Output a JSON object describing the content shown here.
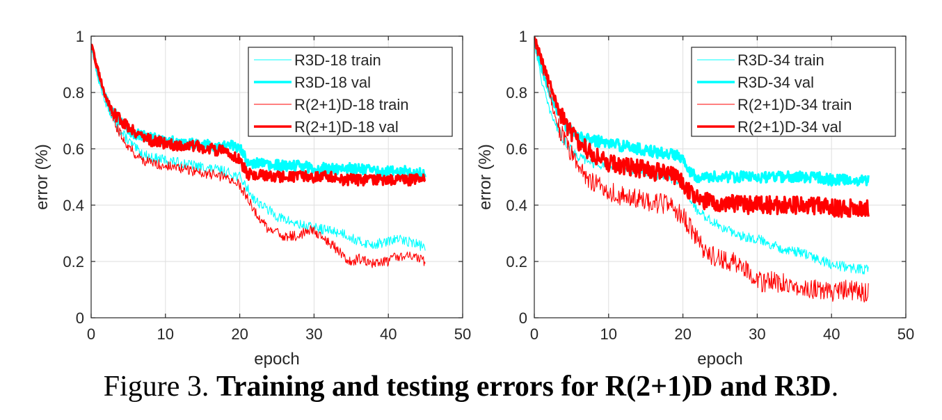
{
  "colors": {
    "cyan": "#00ffff",
    "red": "#ff0000",
    "axis": "#262626",
    "grid": "#dedede"
  },
  "caption": {
    "prefix": "Figure 3.",
    "bold": "Training and testing errors for R(2+1)D and R3D",
    "suffix": "."
  },
  "chart_data": [
    {
      "type": "line",
      "xlabel": "epoch",
      "ylabel": "error (%)",
      "xlim": [
        0,
        50
      ],
      "ylim": [
        0,
        1
      ],
      "xticks": [
        "0",
        "10",
        "20",
        "30",
        "40",
        "50"
      ],
      "yticks": [
        "0",
        "0.2",
        "0.4",
        "0.6",
        "0.8",
        "1"
      ],
      "grid": true,
      "legend_position": "top-right",
      "series": [
        {
          "name": "R3D-18 train",
          "color": "#00ffff",
          "weight": "thin",
          "points": [
            [
              0,
              0.97
            ],
            [
              1,
              0.84
            ],
            [
              2,
              0.76
            ],
            [
              3,
              0.7
            ],
            [
              4,
              0.66
            ],
            [
              5,
              0.63
            ],
            [
              6,
              0.6
            ],
            [
              7,
              0.58
            ],
            [
              8,
              0.57
            ],
            [
              10,
              0.56
            ],
            [
              12,
              0.55
            ],
            [
              14,
              0.54
            ],
            [
              16,
              0.53
            ],
            [
              18,
              0.52
            ],
            [
              19,
              0.51
            ],
            [
              20,
              0.5
            ],
            [
              21,
              0.46
            ],
            [
              22,
              0.42
            ],
            [
              23,
              0.4
            ],
            [
              24,
              0.38
            ],
            [
              25,
              0.36
            ],
            [
              26,
              0.35
            ],
            [
              28,
              0.33
            ],
            [
              30,
              0.32
            ],
            [
              32,
              0.31
            ],
            [
              34,
              0.3
            ],
            [
              36,
              0.27
            ],
            [
              38,
              0.26
            ],
            [
              40,
              0.27
            ],
            [
              41,
              0.28
            ],
            [
              43,
              0.27
            ],
            [
              45,
              0.25
            ]
          ]
        },
        {
          "name": "R3D-18 val",
          "color": "#00ffff",
          "weight": "thick",
          "points": [
            [
              0,
              0.97
            ],
            [
              1,
              0.86
            ],
            [
              2,
              0.78
            ],
            [
              3,
              0.73
            ],
            [
              4,
              0.7
            ],
            [
              5,
              0.67
            ],
            [
              6,
              0.65
            ],
            [
              8,
              0.64
            ],
            [
              10,
              0.63
            ],
            [
              12,
              0.62
            ],
            [
              14,
              0.62
            ],
            [
              16,
              0.61
            ],
            [
              18,
              0.61
            ],
            [
              19,
              0.61
            ],
            [
              20,
              0.6
            ],
            [
              21,
              0.56
            ],
            [
              22,
              0.55
            ],
            [
              24,
              0.54
            ],
            [
              26,
              0.54
            ],
            [
              28,
              0.54
            ],
            [
              30,
              0.53
            ],
            [
              32,
              0.53
            ],
            [
              34,
              0.53
            ],
            [
              36,
              0.53
            ],
            [
              38,
              0.52
            ],
            [
              40,
              0.52
            ],
            [
              42,
              0.52
            ],
            [
              45,
              0.51
            ]
          ]
        },
        {
          "name": "R(2+1)D-18 train",
          "color": "#ff0000",
          "weight": "thin",
          "points": [
            [
              0,
              0.97
            ],
            [
              1,
              0.88
            ],
            [
              2,
              0.78
            ],
            [
              3,
              0.7
            ],
            [
              4,
              0.65
            ],
            [
              5,
              0.61
            ],
            [
              6,
              0.58
            ],
            [
              7,
              0.56
            ],
            [
              8,
              0.55
            ],
            [
              10,
              0.54
            ],
            [
              12,
              0.53
            ],
            [
              14,
              0.52
            ],
            [
              16,
              0.51
            ],
            [
              18,
              0.5
            ],
            [
              19,
              0.49
            ],
            [
              20,
              0.47
            ],
            [
              21,
              0.43
            ],
            [
              22,
              0.38
            ],
            [
              23,
              0.34
            ],
            [
              24,
              0.31
            ],
            [
              25,
              0.3
            ],
            [
              26,
              0.29
            ],
            [
              28,
              0.29
            ],
            [
              29,
              0.31
            ],
            [
              30,
              0.31
            ],
            [
              32,
              0.27
            ],
            [
              34,
              0.22
            ],
            [
              35,
              0.2
            ],
            [
              36,
              0.21
            ],
            [
              38,
              0.19
            ],
            [
              40,
              0.2
            ],
            [
              41,
              0.22
            ],
            [
              43,
              0.22
            ],
            [
              45,
              0.2
            ]
          ]
        },
        {
          "name": "R(2+1)D-18 val",
          "color": "#ff0000",
          "weight": "thick",
          "points": [
            [
              0,
              0.97
            ],
            [
              1,
              0.87
            ],
            [
              2,
              0.78
            ],
            [
              3,
              0.73
            ],
            [
              4,
              0.7
            ],
            [
              5,
              0.68
            ],
            [
              6,
              0.66
            ],
            [
              8,
              0.63
            ],
            [
              10,
              0.62
            ],
            [
              12,
              0.61
            ],
            [
              14,
              0.61
            ],
            [
              16,
              0.6
            ],
            [
              18,
              0.59
            ],
            [
              19,
              0.58
            ],
            [
              20,
              0.56
            ],
            [
              21,
              0.51
            ],
            [
              22,
              0.51
            ],
            [
              24,
              0.5
            ],
            [
              26,
              0.5
            ],
            [
              28,
              0.5
            ],
            [
              30,
              0.5
            ],
            [
              32,
              0.5
            ],
            [
              34,
              0.49
            ],
            [
              36,
              0.49
            ],
            [
              38,
              0.49
            ],
            [
              40,
              0.49
            ],
            [
              42,
              0.49
            ],
            [
              45,
              0.49
            ]
          ]
        }
      ]
    },
    {
      "type": "line",
      "xlabel": "epoch",
      "ylabel": "error (%)",
      "xlim": [
        0,
        50
      ],
      "ylim": [
        0,
        1
      ],
      "xticks": [
        "0",
        "10",
        "20",
        "30",
        "40",
        "50"
      ],
      "yticks": [
        "0",
        "0.2",
        "0.4",
        "0.6",
        "0.8",
        "1"
      ],
      "grid": true,
      "legend_position": "top-right",
      "series": [
        {
          "name": "R3D-34 train",
          "color": "#00ffff",
          "weight": "thin",
          "points": [
            [
              0,
              0.98
            ],
            [
              1,
              0.84
            ],
            [
              2,
              0.74
            ],
            [
              3,
              0.68
            ],
            [
              4,
              0.63
            ],
            [
              5,
              0.6
            ],
            [
              6,
              0.57
            ],
            [
              8,
              0.55
            ],
            [
              10,
              0.54
            ],
            [
              12,
              0.53
            ],
            [
              14,
              0.52
            ],
            [
              16,
              0.51
            ],
            [
              18,
              0.5
            ],
            [
              20,
              0.48
            ],
            [
              21,
              0.42
            ],
            [
              22,
              0.38
            ],
            [
              24,
              0.34
            ],
            [
              26,
              0.31
            ],
            [
              28,
              0.29
            ],
            [
              30,
              0.28
            ],
            [
              32,
              0.26
            ],
            [
              34,
              0.24
            ],
            [
              36,
              0.23
            ],
            [
              38,
              0.21
            ],
            [
              40,
              0.19
            ],
            [
              42,
              0.18
            ],
            [
              45,
              0.17
            ]
          ]
        },
        {
          "name": "R3D-34 val",
          "color": "#00ffff",
          "weight": "thick",
          "points": [
            [
              0,
              0.98
            ],
            [
              1,
              0.88
            ],
            [
              2,
              0.8
            ],
            [
              3,
              0.74
            ],
            [
              4,
              0.69
            ],
            [
              5,
              0.66
            ],
            [
              6,
              0.64
            ],
            [
              8,
              0.63
            ],
            [
              10,
              0.62
            ],
            [
              12,
              0.61
            ],
            [
              14,
              0.6
            ],
            [
              16,
              0.59
            ],
            [
              18,
              0.58
            ],
            [
              19,
              0.58
            ],
            [
              20,
              0.57
            ],
            [
              21,
              0.52
            ],
            [
              22,
              0.5
            ],
            [
              24,
              0.5
            ],
            [
              26,
              0.5
            ],
            [
              28,
              0.5
            ],
            [
              30,
              0.5
            ],
            [
              32,
              0.5
            ],
            [
              34,
              0.5
            ],
            [
              36,
              0.5
            ],
            [
              38,
              0.5
            ],
            [
              40,
              0.49
            ],
            [
              42,
              0.49
            ],
            [
              45,
              0.49
            ]
          ]
        },
        {
          "name": "R(2+1)D-34 train",
          "color": "#ff0000",
          "weight": "thin",
          "points": [
            [
              0,
              0.98
            ],
            [
              1,
              0.9
            ],
            [
              2,
              0.8
            ],
            [
              3,
              0.7
            ],
            [
              4,
              0.63
            ],
            [
              5,
              0.58
            ],
            [
              6,
              0.54
            ],
            [
              7,
              0.5
            ],
            [
              8,
              0.48
            ],
            [
              10,
              0.45
            ],
            [
              12,
              0.43
            ],
            [
              14,
              0.42
            ],
            [
              16,
              0.41
            ],
            [
              18,
              0.4
            ],
            [
              19,
              0.38
            ],
            [
              20,
              0.36
            ],
            [
              21,
              0.32
            ],
            [
              22,
              0.27
            ],
            [
              23,
              0.24
            ],
            [
              24,
              0.22
            ],
            [
              26,
              0.2
            ],
            [
              28,
              0.19
            ],
            [
              29,
              0.16
            ],
            [
              30,
              0.14
            ],
            [
              31,
              0.12
            ],
            [
              32,
              0.13
            ],
            [
              34,
              0.12
            ],
            [
              36,
              0.11
            ],
            [
              38,
              0.1
            ],
            [
              40,
              0.09
            ],
            [
              42,
              0.1
            ],
            [
              44,
              0.09
            ],
            [
              45,
              0.09
            ]
          ]
        },
        {
          "name": "R(2+1)D-34 val",
          "color": "#ff0000",
          "weight": "thick",
          "points": [
            [
              0,
              0.99
            ],
            [
              1,
              0.92
            ],
            [
              2,
              0.84
            ],
            [
              3,
              0.76
            ],
            [
              4,
              0.7
            ],
            [
              5,
              0.66
            ],
            [
              6,
              0.62
            ],
            [
              8,
              0.58
            ],
            [
              10,
              0.55
            ],
            [
              12,
              0.54
            ],
            [
              14,
              0.53
            ],
            [
              16,
              0.52
            ],
            [
              18,
              0.51
            ],
            [
              19,
              0.5
            ],
            [
              20,
              0.48
            ],
            [
              21,
              0.44
            ],
            [
              22,
              0.42
            ],
            [
              24,
              0.41
            ],
            [
              26,
              0.41
            ],
            [
              28,
              0.4
            ],
            [
              30,
              0.4
            ],
            [
              32,
              0.4
            ],
            [
              34,
              0.4
            ],
            [
              36,
              0.4
            ],
            [
              38,
              0.4
            ],
            [
              40,
              0.39
            ],
            [
              42,
              0.39
            ],
            [
              45,
              0.39
            ]
          ]
        }
      ]
    }
  ]
}
